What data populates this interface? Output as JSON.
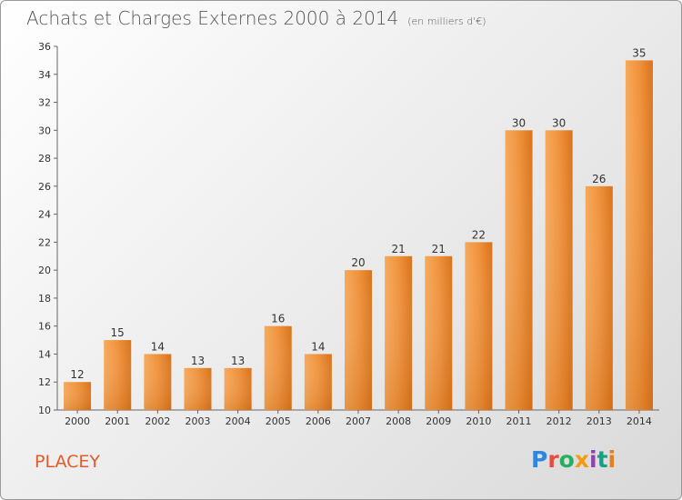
{
  "header": {
    "title": "Achats et Charges Externes 2000 à 2014",
    "subtitle": "(en milliers d'€)"
  },
  "footer": {
    "city": "PLACEY",
    "logo": "Proxiti",
    "logo_colors": [
      "#2e86de",
      "#e74c3c",
      "#27ae60",
      "#f39c12",
      "#8e44ad",
      "#16a085",
      "#e67e22"
    ]
  },
  "chart_data": {
    "type": "bar",
    "title": "Achats et Charges Externes 2000 à 2014",
    "subtitle": "(en milliers d'€)",
    "xlabel": "",
    "ylabel": "",
    "categories": [
      "2000",
      "2001",
      "2002",
      "2003",
      "2004",
      "2005",
      "2006",
      "2007",
      "2008",
      "2009",
      "2010",
      "2011",
      "2012",
      "2013",
      "2014"
    ],
    "values": [
      12,
      15,
      14,
      13,
      13,
      16,
      14,
      20,
      21,
      21,
      22,
      30,
      30,
      26,
      35
    ],
    "ylim": [
      10,
      36
    ],
    "yticks": [
      10,
      12,
      14,
      16,
      18,
      20,
      22,
      24,
      26,
      28,
      30,
      32,
      34,
      36
    ],
    "grid": false,
    "bar_color": "#f0923c",
    "bar_color_dark": "#d36d12"
  }
}
